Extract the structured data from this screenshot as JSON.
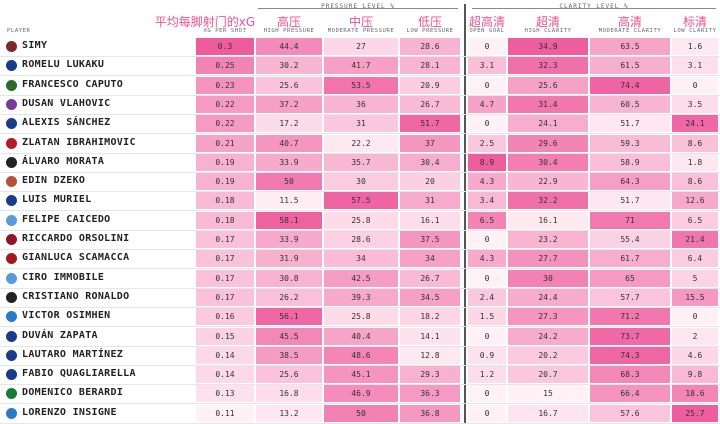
{
  "header": {
    "pressure_group": "PRESSURE LEVEL %",
    "clarity_group": "CLARITY LEVEL %",
    "player_col": "PLAYER",
    "columns": [
      {
        "key": "xg",
        "label": "XG PER SHOT",
        "zh": "平均每脚射门的xG"
      },
      {
        "key": "hp",
        "label": "HIGH PRESSURE",
        "zh": "高压"
      },
      {
        "key": "mp",
        "label": "MODERATE PRESSURE",
        "zh": "中压"
      },
      {
        "key": "lp",
        "label": "LOW PRESSURE",
        "zh": "低压"
      },
      {
        "key": "og",
        "label": "OPEN GOAL",
        "zh": "超高清"
      },
      {
        "key": "hc",
        "label": "HIGH CLARITY",
        "zh": "超清"
      },
      {
        "key": "mc",
        "label": "MODERATE CLARITY",
        "zh": "高清"
      },
      {
        "key": "lc",
        "label": "LOW CLARITY",
        "zh": "标清"
      }
    ]
  },
  "chart_data": {
    "type": "table",
    "title": "",
    "columns": [
      "PLAYER",
      "XG PER SHOT",
      "HIGH PRESSURE",
      "MODERATE PRESSURE",
      "LOW PRESSURE",
      "OPEN GOAL",
      "HIGH CLARITY",
      "MODERATE CLARITY",
      "LOW CLARITY"
    ],
    "rows": [
      {
        "player": "SIMY",
        "badge": "#7a2a2a",
        "xg": "0.3",
        "hp": "44.4",
        "mp": "27",
        "lp": "28.6",
        "og": "0",
        "hc": "34.9",
        "mc": "63.5",
        "lc": "1.6"
      },
      {
        "player": "ROMELU LUKAKU",
        "badge": "#1a3a8a",
        "xg": "0.25",
        "hp": "30.2",
        "mp": "41.7",
        "lp": "28.1",
        "og": "3.1",
        "hc": "32.3",
        "mc": "61.5",
        "lc": "3.1"
      },
      {
        "player": "FRANCESCO CAPUTO",
        "badge": "#2a6a2a",
        "xg": "0.23",
        "hp": "25.6",
        "mp": "53.5",
        "lp": "20.9",
        "og": "0",
        "hc": "25.6",
        "mc": "74.4",
        "lc": "0"
      },
      {
        "player": "DUSAN VLAHOVIC",
        "badge": "#7a3a9a",
        "xg": "0.22",
        "hp": "37.2",
        "mp": "36",
        "lp": "26.7",
        "og": "4.7",
        "hc": "31.4",
        "mc": "60.5",
        "lc": "3.5"
      },
      {
        "player": "ALEXIS SÁNCHEZ",
        "badge": "#1a3a8a",
        "xg": "0.22",
        "hp": "17.2",
        "mp": "31",
        "lp": "51.7",
        "og": "0",
        "hc": "24.1",
        "mc": "51.7",
        "lc": "24.1"
      },
      {
        "player": "ZLATAN IBRAHIMOVIC",
        "badge": "#b01c2a",
        "xg": "0.21",
        "hp": "40.7",
        "mp": "22.2",
        "lp": "37",
        "og": "2.5",
        "hc": "29.6",
        "mc": "59.3",
        "lc": "8.6"
      },
      {
        "player": "ÁLVARO MORATA",
        "badge": "#222222",
        "xg": "0.19",
        "hp": "33.9",
        "mp": "35.7",
        "lp": "30.4",
        "og": "8.9",
        "hc": "30.4",
        "mc": "58.9",
        "lc": "1.8"
      },
      {
        "player": "EDIN DZEKO",
        "badge": "#b5503a",
        "xg": "0.19",
        "hp": "50",
        "mp": "30",
        "lp": "20",
        "og": "4.3",
        "hc": "22.9",
        "mc": "64.3",
        "lc": "8.6"
      },
      {
        "player": "LUIS MURIEL",
        "badge": "#1a3a8a",
        "xg": "0.18",
        "hp": "11.5",
        "mp": "57.5",
        "lp": "31",
        "og": "3.4",
        "hc": "32.2",
        "mc": "51.7",
        "lc": "12.6"
      },
      {
        "player": "FELIPE CAICEDO",
        "badge": "#5a9ad8",
        "xg": "0.18",
        "hp": "58.1",
        "mp": "25.8",
        "lp": "16.1",
        "og": "6.5",
        "hc": "16.1",
        "mc": "71",
        "lc": "6.5"
      },
      {
        "player": "RICCARDO ORSOLINI",
        "badge": "#8a1a2a",
        "xg": "0.17",
        "hp": "33.9",
        "mp": "28.6",
        "lp": "37.5",
        "og": "0",
        "hc": "23.2",
        "mc": "55.4",
        "lc": "21.4"
      },
      {
        "player": "GIANLUCA SCAMACCA",
        "badge": "#a01a1a",
        "xg": "0.17",
        "hp": "31.9",
        "mp": "34",
        "lp": "34",
        "og": "4.3",
        "hc": "27.7",
        "mc": "61.7",
        "lc": "6.4"
      },
      {
        "player": "CIRO IMMOBILE",
        "badge": "#5a9ad8",
        "xg": "0.17",
        "hp": "30.8",
        "mp": "42.5",
        "lp": "26.7",
        "og": "0",
        "hc": "30",
        "mc": "65",
        "lc": "5"
      },
      {
        "player": "CRISTIANO RONALDO",
        "badge": "#222222",
        "xg": "0.17",
        "hp": "26.2",
        "mp": "39.3",
        "lp": "34.5",
        "og": "2.4",
        "hc": "24.4",
        "mc": "57.7",
        "lc": "15.5"
      },
      {
        "player": "VICTOR OSIMHEN",
        "badge": "#2a7ac8",
        "xg": "0.16",
        "hp": "56.1",
        "mp": "25.8",
        "lp": "18.2",
        "og": "1.5",
        "hc": "27.3",
        "mc": "71.2",
        "lc": "0"
      },
      {
        "player": "DUVÁN ZAPATA",
        "badge": "#1a3a8a",
        "xg": "0.15",
        "hp": "45.5",
        "mp": "40.4",
        "lp": "14.1",
        "og": "0",
        "hc": "24.2",
        "mc": "73.7",
        "lc": "2"
      },
      {
        "player": "LAUTARO MARTÍNEZ",
        "badge": "#1a3a8a",
        "xg": "0.14",
        "hp": "38.5",
        "mp": "48.6",
        "lp": "12.8",
        "og": "0.9",
        "hc": "20.2",
        "mc": "74.3",
        "lc": "4.6"
      },
      {
        "player": "FABIO QUAGLIARELLA",
        "badge": "#1a3a8a",
        "xg": "0.14",
        "hp": "25.6",
        "mp": "45.1",
        "lp": "29.3",
        "og": "1.2",
        "hc": "20.7",
        "mc": "68.3",
        "lc": "9.8"
      },
      {
        "player": "DOMENICO BERARDI",
        "badge": "#1a7a3a",
        "xg": "0.13",
        "hp": "16.8",
        "mp": "46.9",
        "lp": "36.3",
        "og": "0",
        "hc": "15",
        "mc": "66.4",
        "lc": "18.6"
      },
      {
        "player": "LORENZO INSIGNE",
        "badge": "#2a7ac8",
        "xg": "0.11",
        "hp": "13.2",
        "mp": "50",
        "lp": "36.8",
        "og": "0",
        "hc": "16.7",
        "mc": "57.6",
        "lc": "25.7"
      }
    ]
  }
}
